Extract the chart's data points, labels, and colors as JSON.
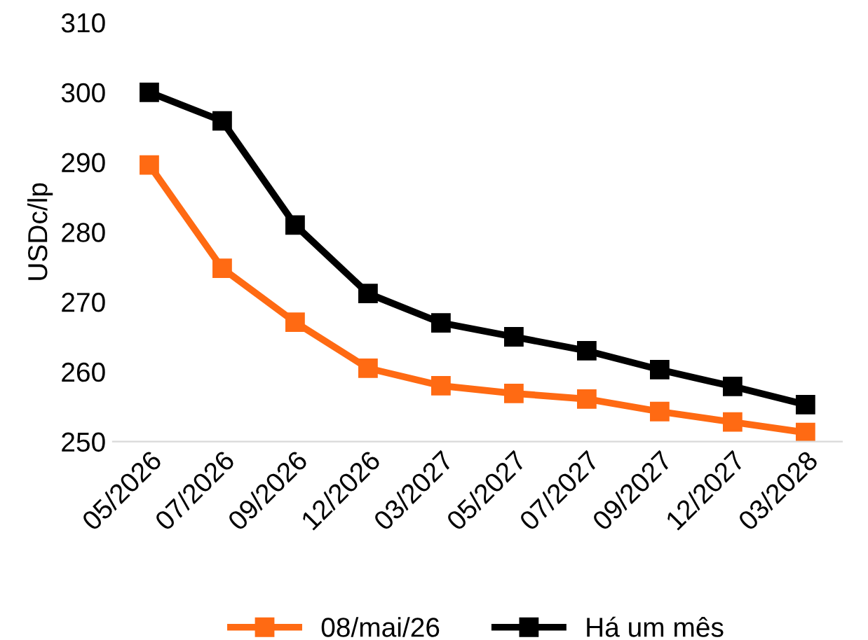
{
  "chart_data": {
    "type": "line",
    "ylabel": "USDc/lp",
    "categories": [
      "05/2026",
      "07/2026",
      "09/2026",
      "12/2026",
      "03/2027",
      "05/2027",
      "07/2027",
      "09/2027",
      "12/2027",
      "03/2028"
    ],
    "series": [
      {
        "name": "08/mai/26",
        "color": "#ff6a13",
        "values": [
          289.6,
          274.8,
          267.1,
          260.5,
          258.0,
          256.9,
          256.1,
          254.3,
          252.8,
          251.3
        ]
      },
      {
        "name": "Há um mês",
        "color": "#000000",
        "values": [
          300.0,
          295.9,
          281.0,
          271.2,
          267.0,
          265.0,
          263.0,
          260.3,
          257.9,
          255.3
        ]
      }
    ],
    "ylim": [
      250,
      310
    ],
    "yticks": [
      250,
      260,
      270,
      280,
      290,
      300,
      310
    ],
    "marker": "square",
    "line_style": "solid",
    "grid": false,
    "legend": "bottom"
  }
}
